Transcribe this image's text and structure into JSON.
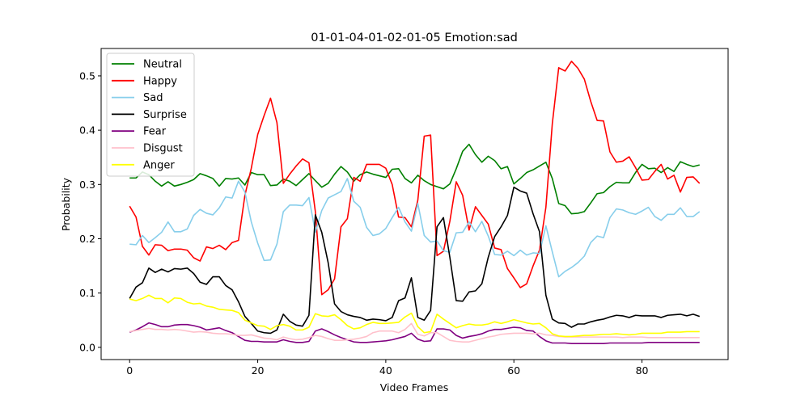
{
  "chart_data": {
    "type": "line",
    "title": "01-01-04-01-02-01-05 Emotion:sad",
    "xlabel": "Video Frames",
    "ylabel": "Probability",
    "xlim": [
      -4.45,
      93.45
    ],
    "ylim": [
      -0.0225,
      0.5505
    ],
    "xticks": [
      0,
      20,
      40,
      60,
      80
    ],
    "yticks": [
      0.0,
      0.1,
      0.2,
      0.3,
      0.4,
      0.5
    ],
    "ytick_labels": [
      "0.0",
      "0.1",
      "0.2",
      "0.3",
      "0.4",
      "0.5"
    ],
    "legend_position": "upper-left",
    "grid": false,
    "series": [
      {
        "name": "Neutral",
        "color": "#008000",
        "values": [
          0.312,
          0.312,
          0.323,
          0.318,
          0.306,
          0.297,
          0.305,
          0.297,
          0.3,
          0.304,
          0.309,
          0.32,
          0.316,
          0.311,
          0.297,
          0.311,
          0.31,
          0.312,
          0.299,
          0.322,
          0.318,
          0.318,
          0.298,
          0.299,
          0.31,
          0.306,
          0.298,
          0.309,
          0.32,
          0.307,
          0.295,
          0.302,
          0.319,
          0.333,
          0.323,
          0.306,
          0.318,
          0.323,
          0.319,
          0.316,
          0.313,
          0.328,
          0.329,
          0.311,
          0.303,
          0.317,
          0.307,
          0.3,
          0.296,
          0.292,
          0.301,
          0.329,
          0.361,
          0.374,
          0.355,
          0.341,
          0.352,
          0.344,
          0.329,
          0.333,
          0.301,
          0.311,
          0.322,
          0.327,
          0.334,
          0.341,
          0.311,
          0.265,
          0.261,
          0.246,
          0.247,
          0.25,
          0.266,
          0.283,
          0.285,
          0.296,
          0.304,
          0.303,
          0.303,
          0.322,
          0.337,
          0.329,
          0.33,
          0.322,
          0.331,
          0.324,
          0.342,
          0.337,
          0.333,
          0.336
        ]
      },
      {
        "name": "Happy",
        "color": "#ff0000",
        "values": [
          0.26,
          0.24,
          0.186,
          0.17,
          0.189,
          0.188,
          0.178,
          0.181,
          0.181,
          0.179,
          0.165,
          0.159,
          0.185,
          0.182,
          0.188,
          0.18,
          0.193,
          0.197,
          0.28,
          0.33,
          0.392,
          0.427,
          0.459,
          0.414,
          0.302,
          0.319,
          0.334,
          0.347,
          0.34,
          0.25,
          0.097,
          0.106,
          0.126,
          0.222,
          0.237,
          0.313,
          0.306,
          0.337,
          0.337,
          0.337,
          0.33,
          0.3,
          0.24,
          0.239,
          0.222,
          0.271,
          0.389,
          0.391,
          0.169,
          0.177,
          0.232,
          0.305,
          0.28,
          0.216,
          0.259,
          0.243,
          0.227,
          0.183,
          0.18,
          0.145,
          0.128,
          0.11,
          0.117,
          0.15,
          0.179,
          0.258,
          0.412,
          0.515,
          0.509,
          0.527,
          0.514,
          0.494,
          0.453,
          0.418,
          0.417,
          0.36,
          0.341,
          0.343,
          0.351,
          0.331,
          0.308,
          0.309,
          0.324,
          0.337,
          0.31,
          0.317,
          0.286,
          0.313,
          0.314,
          0.302
        ]
      },
      {
        "name": "Sad",
        "color": "#87ceeb",
        "values": [
          0.19,
          0.189,
          0.206,
          0.193,
          0.202,
          0.212,
          0.231,
          0.213,
          0.213,
          0.218,
          0.243,
          0.254,
          0.247,
          0.244,
          0.257,
          0.277,
          0.275,
          0.306,
          0.286,
          0.231,
          0.192,
          0.16,
          0.161,
          0.19,
          0.25,
          0.262,
          0.262,
          0.261,
          0.276,
          0.212,
          0.252,
          0.275,
          0.281,
          0.287,
          0.311,
          0.269,
          0.258,
          0.221,
          0.206,
          0.209,
          0.219,
          0.239,
          0.258,
          0.231,
          0.214,
          0.265,
          0.206,
          0.194,
          0.196,
          0.178,
          0.175,
          0.211,
          0.212,
          0.231,
          0.213,
          0.232,
          0.205,
          0.171,
          0.17,
          0.177,
          0.169,
          0.179,
          0.17,
          0.174,
          0.173,
          0.224,
          0.176,
          0.13,
          0.14,
          0.147,
          0.156,
          0.168,
          0.193,
          0.205,
          0.202,
          0.239,
          0.255,
          0.253,
          0.248,
          0.245,
          0.251,
          0.258,
          0.241,
          0.234,
          0.245,
          0.245,
          0.257,
          0.241,
          0.241,
          0.25
        ]
      },
      {
        "name": "Surprise",
        "color": "#000000",
        "values": [
          0.09,
          0.111,
          0.119,
          0.146,
          0.138,
          0.144,
          0.139,
          0.145,
          0.144,
          0.146,
          0.136,
          0.12,
          0.116,
          0.13,
          0.13,
          0.114,
          0.106,
          0.084,
          0.057,
          0.044,
          0.03,
          0.027,
          0.026,
          0.032,
          0.061,
          0.048,
          0.041,
          0.039,
          0.059,
          0.244,
          0.212,
          0.156,
          0.08,
          0.066,
          0.06,
          0.057,
          0.055,
          0.05,
          0.052,
          0.051,
          0.049,
          0.055,
          0.086,
          0.091,
          0.128,
          0.055,
          0.05,
          0.068,
          0.222,
          0.239,
          0.166,
          0.086,
          0.085,
          0.102,
          0.104,
          0.117,
          0.166,
          0.204,
          0.222,
          0.243,
          0.295,
          0.288,
          0.284,
          0.246,
          0.213,
          0.096,
          0.052,
          0.045,
          0.044,
          0.037,
          0.043,
          0.043,
          0.047,
          0.05,
          0.052,
          0.056,
          0.059,
          0.058,
          0.055,
          0.059,
          0.058,
          0.058,
          0.058,
          0.055,
          0.059,
          0.06,
          0.061,
          0.058,
          0.061,
          0.057
        ]
      },
      {
        "name": "Fear",
        "color": "#800080",
        "values": [
          0.028,
          0.032,
          0.038,
          0.045,
          0.042,
          0.038,
          0.038,
          0.041,
          0.042,
          0.042,
          0.04,
          0.037,
          0.032,
          0.034,
          0.036,
          0.031,
          0.027,
          0.02,
          0.013,
          0.011,
          0.011,
          0.01,
          0.01,
          0.01,
          0.014,
          0.011,
          0.009,
          0.009,
          0.011,
          0.03,
          0.034,
          0.029,
          0.023,
          0.018,
          0.014,
          0.01,
          0.009,
          0.009,
          0.01,
          0.011,
          0.012,
          0.014,
          0.017,
          0.02,
          0.026,
          0.015,
          0.011,
          0.012,
          0.034,
          0.034,
          0.032,
          0.022,
          0.017,
          0.02,
          0.022,
          0.025,
          0.03,
          0.033,
          0.033,
          0.035,
          0.037,
          0.036,
          0.031,
          0.03,
          0.02,
          0.012,
          0.008,
          0.008,
          0.008,
          0.007,
          0.007,
          0.007,
          0.007,
          0.007,
          0.007,
          0.008,
          0.008,
          0.008,
          0.008,
          0.008,
          0.008,
          0.009,
          0.009,
          0.009,
          0.009,
          0.009,
          0.009,
          0.009,
          0.009,
          0.009
        ]
      },
      {
        "name": "Disgust",
        "color": "#ffc0cb",
        "values": [
          0.029,
          0.031,
          0.033,
          0.035,
          0.033,
          0.033,
          0.032,
          0.033,
          0.032,
          0.03,
          0.028,
          0.029,
          0.028,
          0.026,
          0.025,
          0.025,
          0.024,
          0.022,
          0.022,
          0.023,
          0.02,
          0.017,
          0.016,
          0.014,
          0.019,
          0.016,
          0.014,
          0.015,
          0.018,
          0.022,
          0.02,
          0.016,
          0.013,
          0.013,
          0.014,
          0.015,
          0.017,
          0.02,
          0.027,
          0.03,
          0.03,
          0.03,
          0.027,
          0.033,
          0.044,
          0.024,
          0.021,
          0.027,
          0.027,
          0.02,
          0.013,
          0.011,
          0.01,
          0.01,
          0.013,
          0.016,
          0.019,
          0.021,
          0.024,
          0.025,
          0.026,
          0.026,
          0.026,
          0.025,
          0.026,
          0.023,
          0.022,
          0.02,
          0.019,
          0.019,
          0.019,
          0.019,
          0.019,
          0.019,
          0.019,
          0.019,
          0.019,
          0.018,
          0.019,
          0.019,
          0.019,
          0.018,
          0.018,
          0.018,
          0.018,
          0.018,
          0.018,
          0.018,
          0.018,
          0.018
        ]
      },
      {
        "name": "Anger",
        "color": "#ffff00",
        "values": [
          0.089,
          0.086,
          0.09,
          0.096,
          0.09,
          0.09,
          0.082,
          0.091,
          0.09,
          0.083,
          0.08,
          0.081,
          0.076,
          0.074,
          0.07,
          0.069,
          0.068,
          0.064,
          0.05,
          0.045,
          0.04,
          0.039,
          0.033,
          0.04,
          0.042,
          0.039,
          0.032,
          0.032,
          0.037,
          0.062,
          0.058,
          0.057,
          0.06,
          0.051,
          0.04,
          0.034,
          0.036,
          0.042,
          0.046,
          0.044,
          0.044,
          0.045,
          0.046,
          0.056,
          0.063,
          0.038,
          0.027,
          0.029,
          0.061,
          0.052,
          0.044,
          0.036,
          0.04,
          0.043,
          0.041,
          0.041,
          0.043,
          0.047,
          0.044,
          0.047,
          0.051,
          0.048,
          0.045,
          0.043,
          0.044,
          0.036,
          0.025,
          0.021,
          0.02,
          0.02,
          0.021,
          0.022,
          0.022,
          0.023,
          0.024,
          0.024,
          0.025,
          0.024,
          0.023,
          0.024,
          0.026,
          0.026,
          0.026,
          0.026,
          0.028,
          0.028,
          0.028,
          0.029,
          0.029,
          0.029
        ]
      }
    ]
  }
}
